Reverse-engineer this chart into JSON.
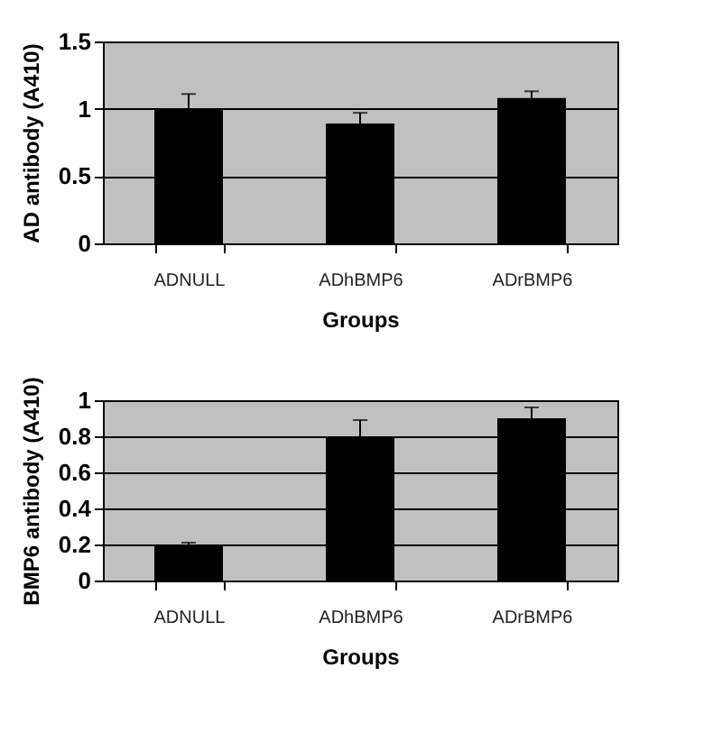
{
  "chart_data": [
    {
      "type": "bar",
      "xlabel": "Groups",
      "ylabel": "AD antibody (A410)",
      "categories": [
        "ADNULL",
        "ADhBMP6",
        "ADrBMP6"
      ],
      "values": [
        1.0,
        0.89,
        1.08
      ],
      "errors": [
        [
          1.0,
          1.11
        ],
        [
          0.89,
          0.97
        ],
        [
          1.08,
          1.13
        ]
      ],
      "color": "#000000",
      "ylim": [
        0,
        1.5
      ],
      "yticks": [
        0,
        0.5,
        1,
        1.5
      ],
      "grid": "y"
    },
    {
      "type": "bar",
      "xlabel": "Groups",
      "ylabel": "BMP6 antibody (A410)",
      "categories": [
        "ADNULL",
        "ADhBMP6",
        "ADrBMP6"
      ],
      "values": [
        0.2,
        0.8,
        0.9
      ],
      "errors": [
        [
          0.2,
          0.21
        ],
        [
          0.8,
          0.89
        ],
        [
          0.9,
          0.96
        ]
      ],
      "color": "#000000",
      "ylim": [
        0,
        1
      ],
      "yticks": [
        0,
        0.2,
        0.4,
        0.6,
        0.8,
        1
      ],
      "grid": "y"
    }
  ]
}
